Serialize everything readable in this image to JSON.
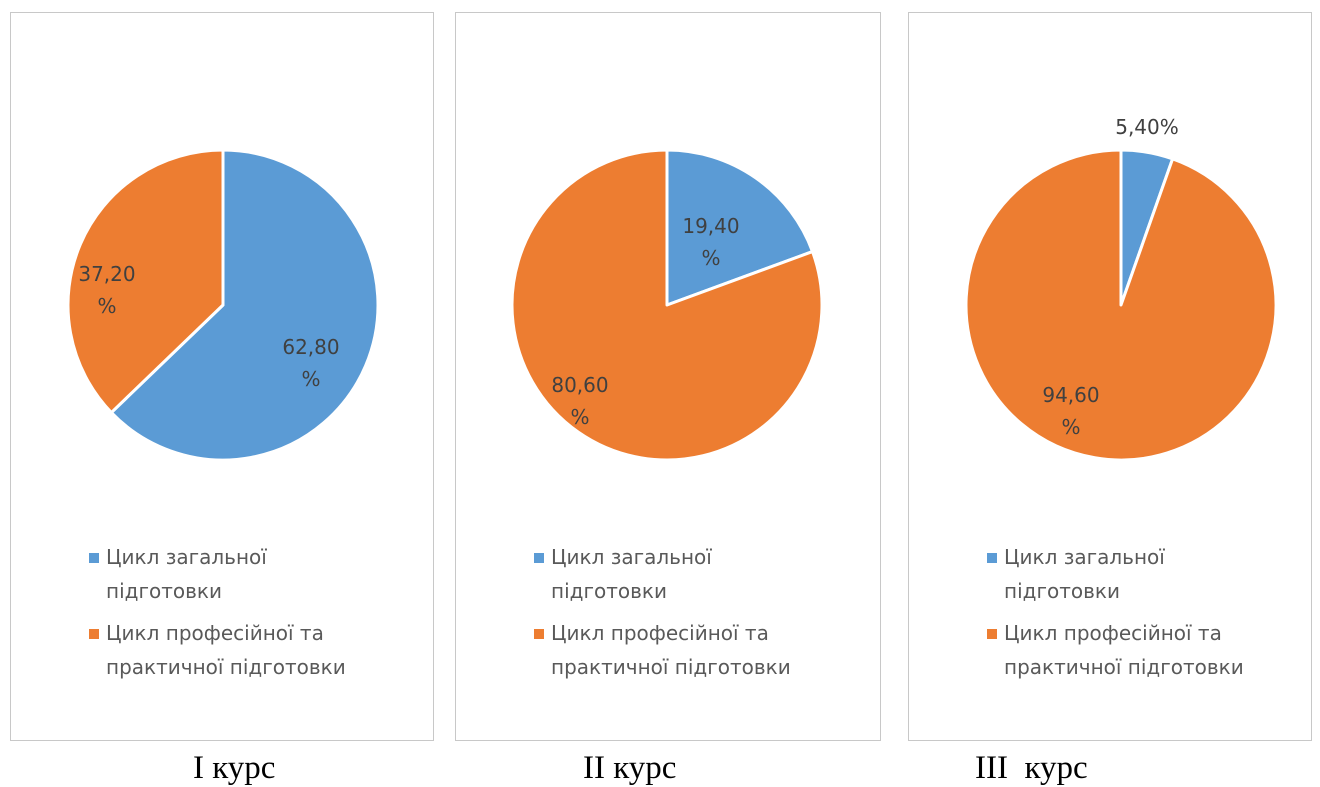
{
  "colors": {
    "general": "#5b9bd5",
    "professional": "#ed7d31"
  },
  "legend": {
    "general_line1": "Цикл загальної",
    "general_line2": "підготовки",
    "professional_line1": "Цикл професійної та",
    "professional_line2": "практичної підготовки"
  },
  "chart_data": [
    {
      "type": "pie",
      "title": "",
      "caption": "І курс",
      "categories": [
        "Цикл загальної підготовки",
        "Цикл професійної та практичної підготовки"
      ],
      "values": [
        62.8,
        37.2
      ],
      "labels": [
        [
          "62,80",
          "%"
        ],
        [
          "37,20",
          "%"
        ]
      ],
      "legend_position": "bottom"
    },
    {
      "type": "pie",
      "title": "",
      "caption": "ІІ курс",
      "categories": [
        "Цикл загальної підготовки",
        "Цикл професійної та практичної підготовки"
      ],
      "values": [
        19.4,
        80.6
      ],
      "labels": [
        [
          "19,40",
          "%"
        ],
        [
          "80,60",
          "%"
        ]
      ],
      "legend_position": "bottom"
    },
    {
      "type": "pie",
      "title": "",
      "caption": "ІІІ  курс",
      "categories": [
        "Цикл загальної підготовки",
        "Цикл професійної та практичної підготовки"
      ],
      "values": [
        5.4,
        94.6
      ],
      "labels": [
        [
          "5,40%"
        ],
        [
          "94,60",
          "%"
        ]
      ],
      "legend_position": "bottom"
    }
  ]
}
